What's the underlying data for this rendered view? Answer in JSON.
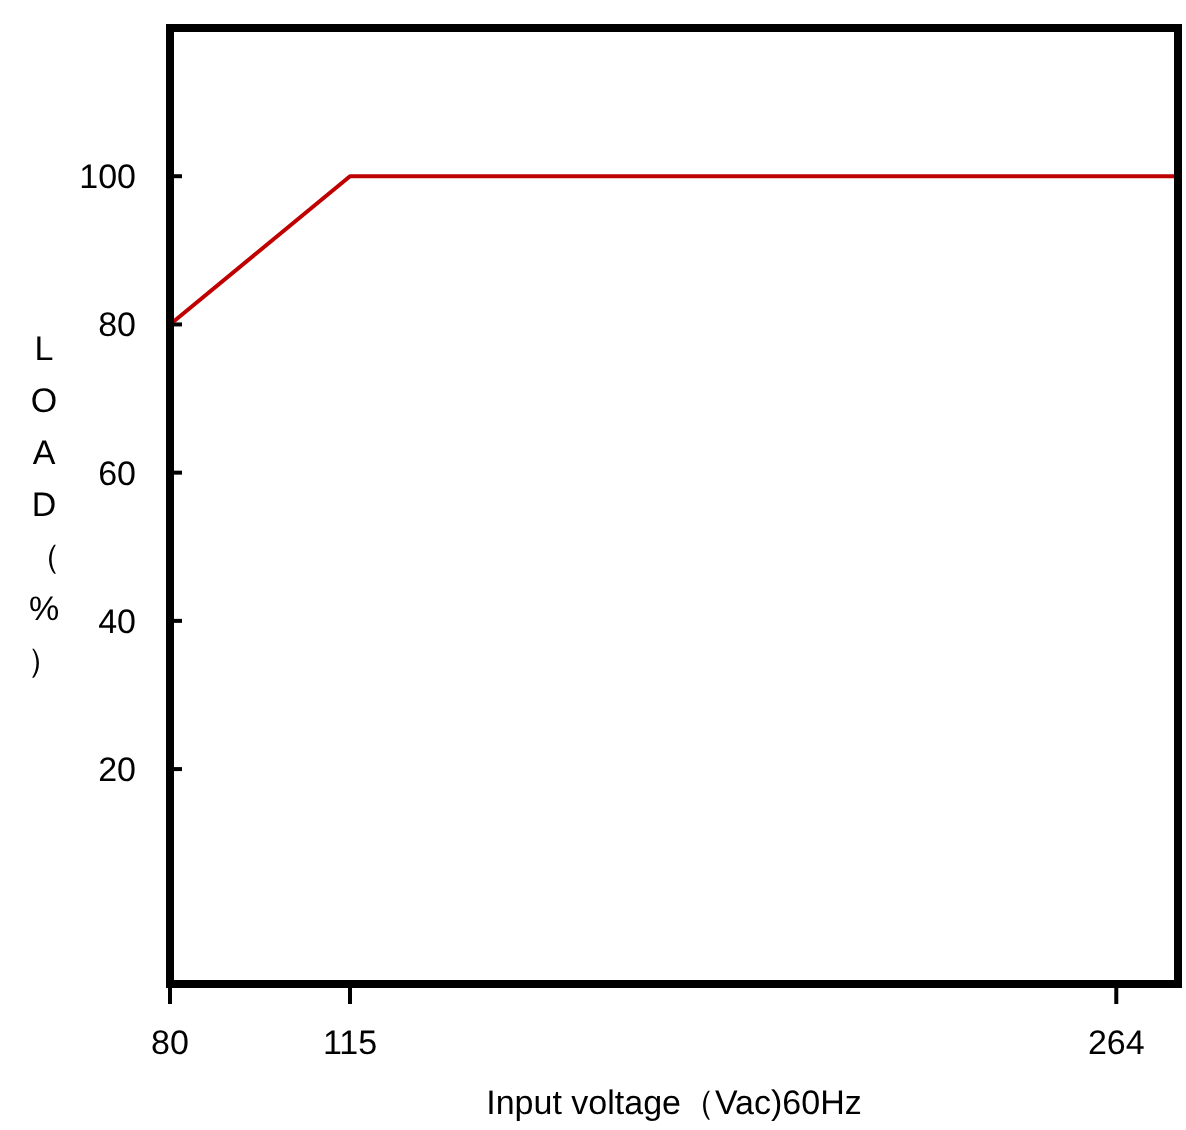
{
  "chart_data": {
    "type": "line",
    "xlabel": "Input voltage（Vac)60Hz",
    "ylabel": "LOAD（%）",
    "x": [
      80,
      115,
      276
    ],
    "series": [
      {
        "color": "#c00000",
        "values": [
          80,
          100,
          100
        ]
      }
    ],
    "xlim": [
      80,
      276
    ],
    "xticks": [
      80,
      115,
      264
    ],
    "ylim": [
      -9,
      120
    ],
    "yticks": [
      20,
      40,
      60,
      80,
      100
    ],
    "grid": false,
    "marker": "none",
    "line_style": "solid"
  }
}
